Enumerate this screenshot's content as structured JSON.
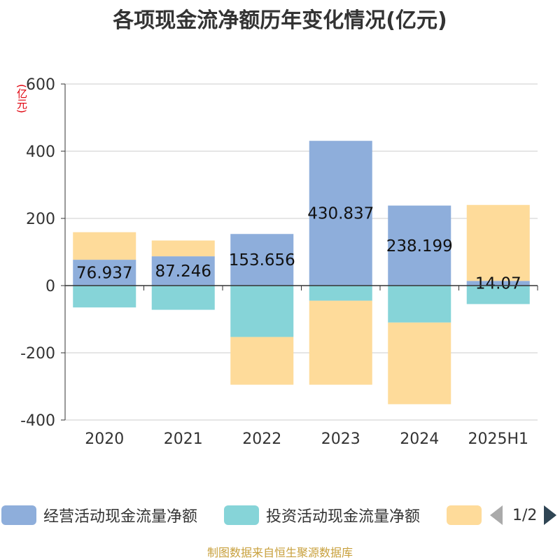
{
  "title": "各项现金流净额历年变化情况(亿元)",
  "y_unit": "(亿元)",
  "source": "制图数据来自恒生聚源数据库",
  "legend": {
    "items": [
      {
        "label": "经营活动现金流量净额",
        "color": "#8eaedb"
      },
      {
        "label": "投资活动现金流量净额",
        "color": "#86d4d8"
      },
      {
        "label": "",
        "color": "#fedb9a"
      }
    ],
    "pager": "1/2"
  },
  "chart_data": {
    "type": "bar",
    "stacked": true,
    "categories": [
      "2020",
      "2021",
      "2022",
      "2023",
      "2024",
      "2025H1"
    ],
    "ylim": [
      -400,
      600
    ],
    "yticks": [
      -400,
      -200,
      0,
      200,
      400,
      600
    ],
    "grid": true,
    "series": [
      {
        "name": "经营活动现金流量净额",
        "color": "#8eaedb",
        "values": [
          76.937,
          87.246,
          153.656,
          430.837,
          238.199,
          14.07
        ],
        "labels": [
          "76.937",
          "87.246",
          "153.656",
          "430.837",
          "238.199",
          "14.07"
        ]
      },
      {
        "name": "投资活动现金流量净额",
        "color": "#86d4d8",
        "values": [
          -65,
          -72,
          -153,
          -45,
          -110,
          -55
        ]
      },
      {
        "color": "#fedb9a",
        "values": [
          82,
          47,
          -142,
          -250,
          -243,
          226
        ]
      }
    ]
  }
}
